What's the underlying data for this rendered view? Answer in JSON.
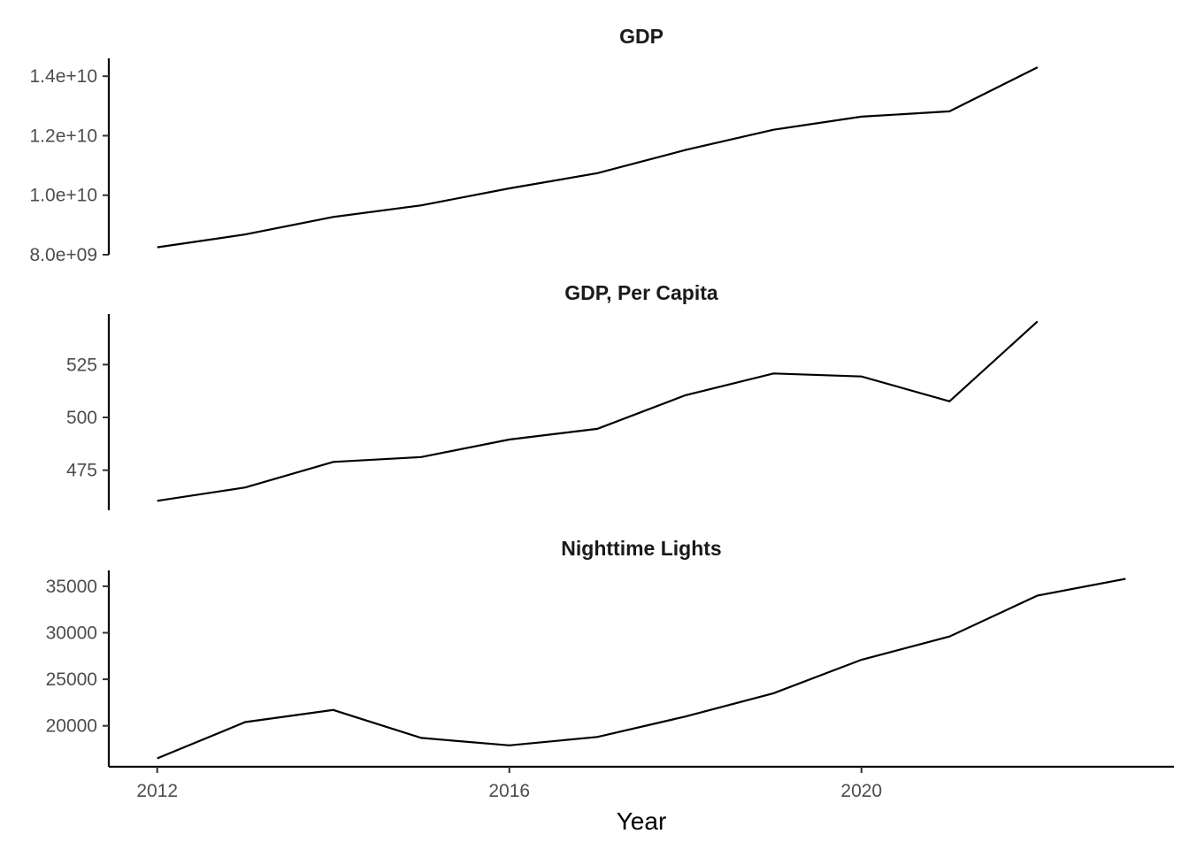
{
  "chart_data": [
    {
      "type": "line",
      "title": "GDP",
      "x": [
        2012,
        2013,
        2014,
        2015,
        2016,
        2017,
        2018,
        2019,
        2020,
        2021,
        2022
      ],
      "y": [
        8250000000.0,
        8680000000.0,
        9270000000.0,
        9660000000.0,
        10230000000.0,
        10740000000.0,
        11520000000.0,
        12200000000.0,
        12640000000.0,
        12820000000.0,
        14300000000.0
      ],
      "yticks": [
        8000000000.0,
        10000000000.0,
        12000000000.0,
        14000000000.0
      ],
      "ytick_labels": [
        "8.0e+09",
        "1.0e+10",
        "1.2e+10",
        "1.4e+10"
      ],
      "ylim": [
        8000000000.0,
        14600000000.0
      ]
    },
    {
      "type": "line",
      "title": "GDP, Per Capita",
      "x": [
        2012,
        2013,
        2014,
        2015,
        2016,
        2017,
        2018,
        2019,
        2020,
        2021,
        2022
      ],
      "y": [
        460.5,
        466.8,
        478.9,
        481.2,
        489.5,
        494.6,
        510.5,
        520.8,
        519.4,
        507.6,
        545.5
      ],
      "yticks": [
        475,
        500,
        525
      ],
      "ytick_labels": [
        "475",
        "500",
        "525"
      ],
      "ylim": [
        456,
        549
      ]
    },
    {
      "type": "line",
      "title": "Nighttime Lights",
      "x": [
        2012,
        2013,
        2014,
        2015,
        2016,
        2017,
        2018,
        2019,
        2020,
        2021,
        2022,
        2023
      ],
      "y": [
        16500,
        20400,
        21700,
        18700,
        17900,
        18800,
        21000,
        23500,
        27100,
        29600,
        34000,
        35800
      ],
      "yticks": [
        20000,
        25000,
        30000,
        35000
      ],
      "ytick_labels": [
        "20000",
        "25000",
        "30000",
        "35000"
      ],
      "ylim": [
        15600,
        36700
      ]
    }
  ],
  "x_axis": {
    "title": "Year",
    "ticks": [
      2012,
      2016,
      2020
    ],
    "tick_labels": [
      "2012",
      "2016",
      "2020"
    ],
    "xlim": [
      2011.45,
      2023.55
    ]
  }
}
